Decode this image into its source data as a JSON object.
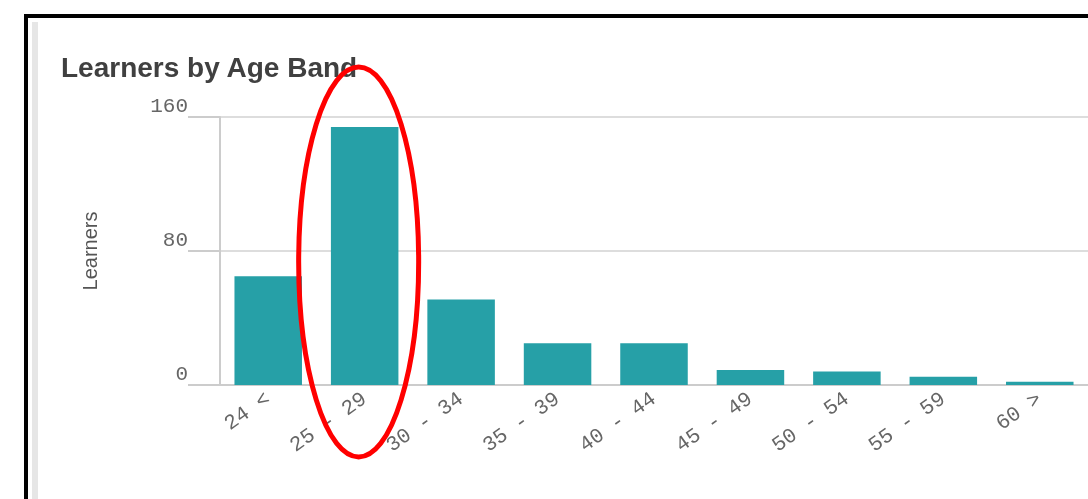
{
  "chart_data": {
    "type": "bar",
    "title": "Learners by Age Band",
    "ylabel": "Learners",
    "categories": [
      "24 <",
      "25 - 29",
      "30 - 34",
      "35 - 39",
      "40 - 44",
      "45 - 49",
      "50 - 54",
      "55 - 59",
      "60 >"
    ],
    "values": [
      65,
      154,
      51,
      25,
      25,
      9,
      8,
      5,
      2
    ],
    "color": "#26a0a7",
    "ylim": [
      0,
      160
    ],
    "yticks": [
      0,
      80,
      160
    ],
    "grid": "y"
  }
}
